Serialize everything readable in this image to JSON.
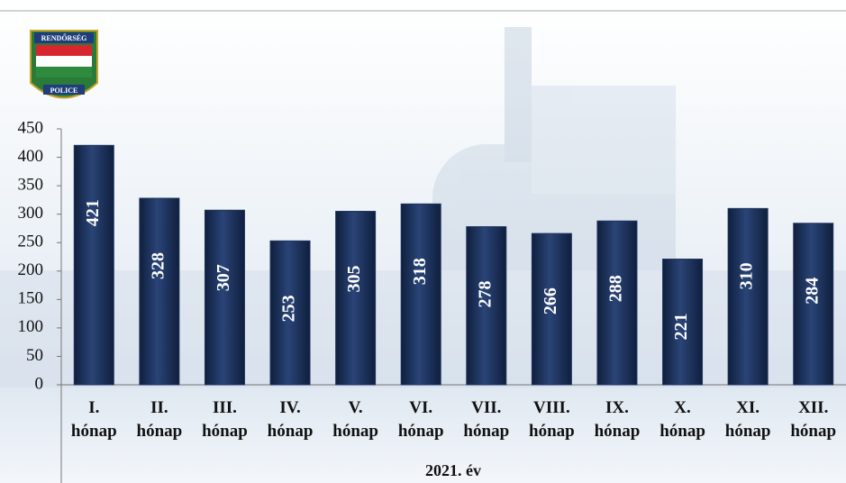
{
  "logo": {
    "top": "RENDŐRSÉG",
    "bottom": "POLICE"
  },
  "chart_data": {
    "type": "bar",
    "x_label": "2021. év",
    "categories": [
      "I. hónap",
      "II. hónap",
      "III. hónap",
      "IV. hónap",
      "V. hónap",
      "VI. hónap",
      "VII. hónap",
      "VIII. hónap",
      "IX. hónap",
      "X. hónap",
      "XI. hónap",
      "XII. hónap"
    ],
    "values": [
      421,
      328,
      307,
      253,
      305,
      318,
      278,
      266,
      288,
      221,
      310,
      284
    ],
    "color": "#1f3560",
    "ylim": [
      0,
      450
    ],
    "yticks": [
      0,
      50,
      100,
      150,
      200,
      250,
      300,
      350,
      400,
      450
    ],
    "grid": false
  }
}
